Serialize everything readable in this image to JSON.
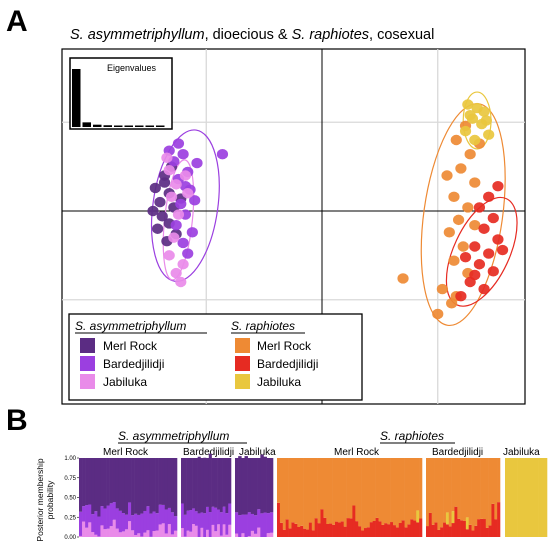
{
  "panel_a_letter": "A",
  "panel_b_letter": "B",
  "chart_data": [
    {
      "type": "scatter",
      "panel": "A",
      "title_parts": [
        "S. asymmetriphyllum",
        ", dioecious & ",
        "S. raphiotes",
        ", cosexual"
      ],
      "inset_label": "Eigenvalues",
      "eigenvalues": [
        1.0,
        0.08,
        0.04,
        0.03,
        0.02,
        0.02,
        0.015,
        0.01,
        0.01
      ],
      "xlim": [
        -1.0,
        1.0
      ],
      "ylim": [
        -1.0,
        1.0
      ],
      "grid": true,
      "legend": {
        "placement": "bottom-left",
        "groups": [
          {
            "species": "S. asymmetriphyllum",
            "entries": [
              {
                "label": "Merl Rock",
                "color": "#5b2c83"
              },
              {
                "label": "Bardedjilidji",
                "color": "#9b3fe0"
              },
              {
                "label": "Jabiluka",
                "color": "#e98be9"
              }
            ]
          },
          {
            "species": "S. raphiotes",
            "entries": [
              {
                "label": "Merl Rock",
                "color": "#ee8a34"
              },
              {
                "label": "Bardedjilidji",
                "color": "#e62b22"
              },
              {
                "label": "Jabiluka",
                "color": "#e9c73e"
              }
            ]
          }
        ]
      },
      "series": [
        {
          "name": "S. asymmetriphyllum Merl Rock",
          "color": "#5b2c83",
          "points": [
            [
              -0.68,
              0.2
            ],
            [
              -0.72,
              0.13
            ],
            [
              -0.66,
              0.1
            ],
            [
              -0.7,
              0.05
            ],
            [
              -0.64,
              0.02
            ],
            [
              -0.69,
              -0.03
            ],
            [
              -0.66,
              -0.07
            ],
            [
              -0.71,
              -0.1
            ],
            [
              -0.63,
              -0.13
            ],
            [
              -0.68,
              0.16
            ],
            [
              -0.73,
              0.0
            ],
            [
              -0.61,
              0.07
            ],
            [
              -0.67,
              -0.17
            ],
            [
              -0.65,
              0.25
            ]
          ]
        },
        {
          "name": "S. asymmetriphyllum Bardedjilidji",
          "color": "#9b3fe0",
          "points": [
            [
              -0.6,
              0.32
            ],
            [
              -0.64,
              0.28
            ],
            [
              -0.58,
              0.22
            ],
            [
              -0.62,
              0.18
            ],
            [
              -0.57,
              0.12
            ],
            [
              -0.61,
              0.04
            ],
            [
              -0.59,
              -0.02
            ],
            [
              -0.63,
              -0.08
            ],
            [
              -0.56,
              -0.12
            ],
            [
              -0.6,
              -0.18
            ],
            [
              -0.66,
              0.34
            ],
            [
              -0.55,
              0.06
            ],
            [
              -0.58,
              -0.24
            ],
            [
              -0.62,
              0.38
            ],
            [
              -0.43,
              0.32
            ],
            [
              -0.54,
              0.27
            ],
            [
              -0.59,
              0.14
            ]
          ]
        },
        {
          "name": "S. asymmetriphyllum Jabiluka",
          "color": "#e98be9",
          "points": [
            [
              -0.66,
              0.23
            ],
            [
              -0.63,
              0.15
            ],
            [
              -0.65,
              0.08
            ],
            [
              -0.62,
              -0.02
            ],
            [
              -0.64,
              -0.15
            ],
            [
              -0.6,
              -0.3
            ],
            [
              -0.63,
              -0.35
            ],
            [
              -0.61,
              -0.4
            ],
            [
              -0.67,
              0.3
            ],
            [
              -0.59,
              0.2
            ],
            [
              -0.66,
              -0.25
            ],
            [
              -0.58,
              0.1
            ]
          ]
        },
        {
          "name": "S. raphiotes Merl Rock",
          "color": "#ee8a34",
          "points": [
            [
              0.62,
              0.48
            ],
            [
              0.58,
              0.4
            ],
            [
              0.64,
              0.32
            ],
            [
              0.6,
              0.24
            ],
            [
              0.66,
              0.16
            ],
            [
              0.57,
              0.08
            ],
            [
              0.63,
              0.02
            ],
            [
              0.59,
              -0.05
            ],
            [
              0.55,
              -0.12
            ],
            [
              0.61,
              -0.2
            ],
            [
              0.57,
              -0.28
            ],
            [
              0.63,
              -0.35
            ],
            [
              0.52,
              -0.44
            ],
            [
              0.56,
              -0.52
            ],
            [
              0.5,
              -0.58
            ],
            [
              0.58,
              -0.48
            ],
            [
              0.35,
              -0.38
            ],
            [
              0.68,
              0.38
            ],
            [
              0.54,
              0.2
            ],
            [
              0.66,
              -0.08
            ]
          ]
        },
        {
          "name": "S. raphiotes Bardedjilidji",
          "color": "#e62b22",
          "points": [
            [
              0.72,
              0.08
            ],
            [
              0.68,
              0.02
            ],
            [
              0.74,
              -0.04
            ],
            [
              0.7,
              -0.1
            ],
            [
              0.76,
              -0.16
            ],
            [
              0.66,
              -0.2
            ],
            [
              0.72,
              -0.24
            ],
            [
              0.68,
              -0.3
            ],
            [
              0.74,
              -0.34
            ],
            [
              0.64,
              -0.4
            ],
            [
              0.7,
              -0.44
            ],
            [
              0.6,
              -0.48
            ],
            [
              0.78,
              -0.22
            ],
            [
              0.76,
              0.14
            ],
            [
              0.62,
              -0.26
            ],
            [
              0.66,
              -0.36
            ]
          ]
        },
        {
          "name": "S. raphiotes Jabiluka",
          "color": "#e9c73e",
          "points": [
            [
              0.63,
              0.6
            ],
            [
              0.67,
              0.58
            ],
            [
              0.7,
              0.56
            ],
            [
              0.65,
              0.52
            ],
            [
              0.69,
              0.49
            ],
            [
              0.62,
              0.45
            ],
            [
              0.72,
              0.43
            ],
            [
              0.66,
              0.4
            ],
            [
              0.64,
              0.54
            ],
            [
              0.71,
              0.51
            ]
          ]
        }
      ],
      "ellipses": [
        {
          "group": "S. asymmetriphyllum Bardedjilidji",
          "color": "#9b3fe0",
          "cx": -0.59,
          "cy": 0.03,
          "rx": 0.14,
          "ry": 0.43,
          "rotate": 8
        },
        {
          "group": "S. asymmetriphyllum Jabiluka",
          "color": "#e98be9",
          "cx": -0.62,
          "cy": -0.05,
          "rx": 0.06,
          "ry": 0.34,
          "rotate": 6
        },
        {
          "group": "S. raphiotes Merl Rock",
          "color": "#ee8a34",
          "cx": 0.61,
          "cy": -0.02,
          "rx": 0.17,
          "ry": 0.63,
          "rotate": 8
        },
        {
          "group": "S. raphiotes Jabiluka",
          "color": "#e9c73e",
          "cx": 0.67,
          "cy": 0.51,
          "rx": 0.06,
          "ry": 0.16,
          "rotate": 0
        },
        {
          "group": "S. raphiotes Bardedjilidji",
          "color": "#e62b22",
          "cx": 0.69,
          "cy": -0.23,
          "rx": 0.12,
          "ry": 0.33,
          "rotate": 25
        }
      ]
    },
    {
      "type": "bar",
      "panel": "B",
      "stacked": true,
      "ylabel": "Posterior membership probability",
      "yticks": [
        "0.00",
        "0.25",
        "0.50",
        "0.75",
        "1.00"
      ],
      "ylim": [
        0,
        1
      ],
      "species_labels": [
        "S. asymmetriphyllum",
        "S. raphiotes"
      ],
      "cluster_colors": [
        "#5b2c83",
        "#9b3fe0",
        "#e98be9",
        "#ee8a34",
        "#e62b22",
        "#e9c73e"
      ],
      "groups": [
        {
          "species": "S. asymmetriphyllum",
          "label": "Merl Rock",
          "n": 32,
          "pattern": "asym",
          "seed": 11
        },
        {
          "species": "S. asymmetriphyllum",
          "label": "Bardedjilidji",
          "n": 18,
          "pattern": "asym",
          "seed": 23
        },
        {
          "species": "S. asymmetriphyllum",
          "label": "Jabiluka",
          "n": 12,
          "pattern": "asym",
          "seed": 37
        },
        {
          "species": "S. raphiotes",
          "label": "Merl Rock",
          "n": 50,
          "pattern": "raph",
          "seed": 41
        },
        {
          "species": "S. raphiotes",
          "label": "Bardedjilidji",
          "n": 26,
          "pattern": "raph",
          "seed": 53
        },
        {
          "species": "S. raphiotes",
          "label": "Jabiluka",
          "n": 10,
          "pattern": "jab",
          "seed": 67
        }
      ]
    }
  ]
}
